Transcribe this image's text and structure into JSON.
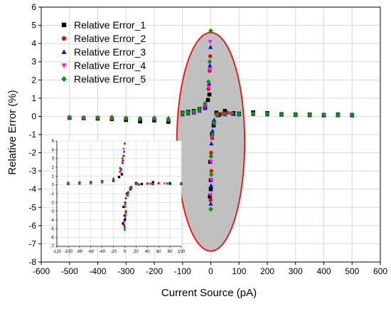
{
  "chart_data": {
    "type": "scatter",
    "xlabel": "Current Source (pA)",
    "ylabel": "Relative Error (%)",
    "xlim": [
      -600,
      600
    ],
    "ylim": [
      -8,
      6
    ],
    "x_ticks": [
      -600,
      -500,
      -400,
      -300,
      -200,
      -100,
      0,
      100,
      200,
      300,
      400,
      500,
      600
    ],
    "y_ticks": [
      -8,
      -7,
      -6,
      -5,
      -4,
      -3,
      -2,
      -1,
      0,
      1,
      2,
      3,
      4,
      5,
      6
    ],
    "grid": true,
    "legend_position": "top-left",
    "highlight": {
      "shape": "ellipse",
      "fill": "#c0c0c0",
      "stroke": "#e02020",
      "center": [
        0,
        -1.4
      ],
      "rx": 120,
      "ry": 6.0
    },
    "series": [
      {
        "name": "Relative Error_1",
        "marker": "square",
        "color": "#000000",
        "points": [
          [
            -500,
            -0.08
          ],
          [
            -450,
            -0.1
          ],
          [
            -400,
            -0.12
          ],
          [
            -350,
            -0.15
          ],
          [
            -300,
            -0.2
          ],
          [
            -250,
            -0.28
          ],
          [
            -200,
            -0.22
          ],
          [
            -150,
            -0.3
          ],
          [
            -100,
            0.2
          ],
          [
            -80,
            0.25
          ],
          [
            -60,
            0.3
          ],
          [
            -40,
            0.4
          ],
          [
            -20,
            0.5
          ],
          [
            -10,
            0.9
          ],
          [
            -5,
            1.2
          ],
          [
            0,
            -3.5
          ],
          [
            0,
            -4.0
          ],
          [
            -3,
            -4.4
          ],
          [
            -2,
            -2.5
          ],
          [
            4,
            -1.0
          ],
          [
            10,
            -0.5
          ],
          [
            20,
            0.2
          ],
          [
            30,
            0.1
          ],
          [
            50,
            0.3
          ],
          [
            80,
            0.18
          ],
          [
            100,
            0.15
          ],
          [
            150,
            0.22
          ],
          [
            200,
            0.18
          ],
          [
            250,
            0.12
          ],
          [
            300,
            0.1
          ],
          [
            350,
            0.1
          ],
          [
            400,
            0.08
          ],
          [
            450,
            0.1
          ],
          [
            500,
            0.08
          ]
        ]
      },
      {
        "name": "Relative Error_2",
        "marker": "circle",
        "color": "#e01010",
        "points": [
          [
            -500,
            -0.05
          ],
          [
            -450,
            -0.07
          ],
          [
            -400,
            -0.08
          ],
          [
            -350,
            -0.06
          ],
          [
            -300,
            -0.1
          ],
          [
            -250,
            -0.12
          ],
          [
            -200,
            -0.1
          ],
          [
            -150,
            -0.15
          ],
          [
            -100,
            0.15
          ],
          [
            -80,
            0.2
          ],
          [
            -60,
            0.25
          ],
          [
            -40,
            0.35
          ],
          [
            -20,
            0.6
          ],
          [
            -8,
            1.5
          ],
          [
            -4,
            2.5
          ],
          [
            -2,
            3.3
          ],
          [
            1,
            -2.0
          ],
          [
            2,
            -3.0
          ],
          [
            -1,
            -4.6
          ],
          [
            5,
            -1.2
          ],
          [
            10,
            -0.3
          ],
          [
            20,
            0.1
          ],
          [
            40,
            0.15
          ],
          [
            60,
            0.2
          ],
          [
            100,
            0.12
          ],
          [
            150,
            0.15
          ],
          [
            200,
            0.12
          ],
          [
            250,
            0.1
          ],
          [
            300,
            0.08
          ],
          [
            350,
            0.06
          ],
          [
            400,
            0.05
          ],
          [
            450,
            0.06
          ],
          [
            500,
            0.05
          ]
        ]
      },
      {
        "name": "Relative Error_3",
        "marker": "triangle-up",
        "color": "#1010d0",
        "points": [
          [
            -500,
            -0.03
          ],
          [
            -450,
            -0.05
          ],
          [
            -400,
            -0.05
          ],
          [
            -350,
            -0.04
          ],
          [
            -300,
            -0.08
          ],
          [
            -250,
            -0.1
          ],
          [
            -200,
            -0.08
          ],
          [
            -150,
            -0.1
          ],
          [
            -100,
            0.1
          ],
          [
            -80,
            0.15
          ],
          [
            -60,
            0.2
          ],
          [
            -40,
            0.3
          ],
          [
            -20,
            0.45
          ],
          [
            -6,
            1.8
          ],
          [
            -3,
            2.8
          ],
          [
            -1,
            3.8
          ],
          [
            2,
            -1.5
          ],
          [
            1,
            -3.8
          ],
          [
            0,
            -4.8
          ],
          [
            6,
            -0.8
          ],
          [
            12,
            -0.2
          ],
          [
            25,
            0.05
          ],
          [
            50,
            0.1
          ],
          [
            80,
            0.12
          ],
          [
            100,
            0.1
          ],
          [
            150,
            0.12
          ],
          [
            200,
            0.1
          ],
          [
            250,
            0.08
          ],
          [
            300,
            0.06
          ],
          [
            350,
            0.05
          ],
          [
            400,
            0.04
          ],
          [
            450,
            0.05
          ],
          [
            500,
            0.04
          ]
        ]
      },
      {
        "name": "Relative Error_4",
        "marker": "triangle-down",
        "color": "#ff10ff",
        "points": [
          [
            -500,
            -0.06
          ],
          [
            -450,
            -0.08
          ],
          [
            -400,
            -0.07
          ],
          [
            -350,
            -0.09
          ],
          [
            -300,
            -0.11
          ],
          [
            -250,
            -0.14
          ],
          [
            -200,
            -0.12
          ],
          [
            -150,
            -0.18
          ],
          [
            -100,
            0.12
          ],
          [
            -80,
            0.18
          ],
          [
            -60,
            0.22
          ],
          [
            -40,
            0.32
          ],
          [
            -20,
            0.55
          ],
          [
            -7,
            1.6
          ],
          [
            -4,
            2.6
          ],
          [
            -2,
            4.1
          ],
          [
            1,
            -2.5
          ],
          [
            2,
            -3.5
          ],
          [
            -1,
            -4.3
          ],
          [
            5,
            -1.1
          ],
          [
            11,
            -0.4
          ],
          [
            22,
            0.08
          ],
          [
            45,
            0.12
          ],
          [
            70,
            0.15
          ],
          [
            100,
            0.1
          ],
          [
            150,
            0.13
          ],
          [
            200,
            0.11
          ],
          [
            250,
            0.09
          ],
          [
            300,
            0.07
          ],
          [
            350,
            0.06
          ],
          [
            400,
            0.05
          ],
          [
            450,
            0.06
          ],
          [
            500,
            0.05
          ]
        ]
      },
      {
        "name": "Relative Error_5",
        "marker": "diamond",
        "color": "#109010",
        "points": [
          [
            -500,
            -0.07
          ],
          [
            -450,
            -0.09
          ],
          [
            -400,
            -0.08
          ],
          [
            -350,
            -0.1
          ],
          [
            -300,
            -0.12
          ],
          [
            -250,
            -0.15
          ],
          [
            -200,
            -0.13
          ],
          [
            -150,
            -0.2
          ],
          [
            -100,
            0.18
          ],
          [
            -80,
            0.22
          ],
          [
            -60,
            0.28
          ],
          [
            -40,
            0.38
          ],
          [
            -20,
            0.7
          ],
          [
            -8,
            1.9
          ],
          [
            -4,
            3.0
          ],
          [
            0,
            4.7
          ],
          [
            1,
            -2.2
          ],
          [
            2,
            -3.2
          ],
          [
            0,
            -5.1
          ],
          [
            6,
            -1.0
          ],
          [
            12,
            -0.35
          ],
          [
            24,
            0.1
          ],
          [
            48,
            0.14
          ],
          [
            75,
            0.16
          ],
          [
            100,
            0.13
          ],
          [
            150,
            0.16
          ],
          [
            200,
            0.14
          ],
          [
            250,
            0.11
          ],
          [
            300,
            0.09
          ],
          [
            350,
            0.08
          ],
          [
            400,
            0.07
          ],
          [
            450,
            0.08
          ],
          [
            500,
            0.07
          ]
        ]
      }
    ],
    "inset": {
      "type": "scatter",
      "xlim": [
        -120,
        100
      ],
      "ylim": [
        -7,
        5
      ],
      "x_ticks": [
        -120,
        -100,
        -80,
        -60,
        -40,
        -20,
        0,
        20,
        40,
        60,
        80,
        100
      ],
      "y_ticks": [
        -7,
        -6,
        -5,
        -4,
        -3,
        -2,
        -1,
        0,
        1,
        2,
        3,
        4,
        5
      ],
      "grid": true
    }
  }
}
